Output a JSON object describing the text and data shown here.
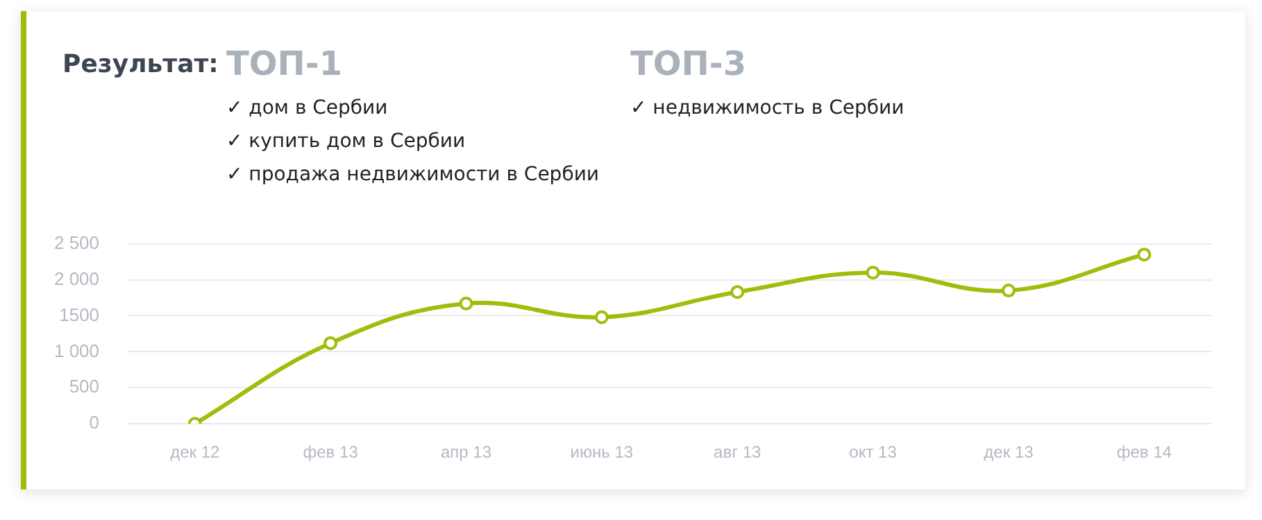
{
  "chart_data": {
    "type": "line",
    "title": "Результат:",
    "annotations": [
      "ТОП-1",
      "✓ дом в Сербии",
      "✓ купить дом в Сербии",
      "✓ продажа недвижимости в Сербии",
      "ТОП-3",
      "✓ недвижимость в Сербии"
    ],
    "categories": [
      "дек 12",
      "фев 13",
      "апр 13",
      "июнь 13",
      "авг 13",
      "окт 13",
      "дек 13",
      "фев 14"
    ],
    "series": [
      {
        "color": "#9dbf0c",
        "values": [
          0,
          1120,
          1670,
          1480,
          1830,
          2100,
          1850,
          2350
        ]
      }
    ],
    "ylim": [
      0,
      2500
    ],
    "yticks": [
      0,
      500,
      {
        "value": 1000,
        "label": "1 000"
      },
      1500,
      {
        "value": 2000,
        "label": "2 000"
      },
      {
        "value": 2500,
        "label": "2 500"
      }
    ],
    "grid": "y",
    "legend": false,
    "marker": "circle",
    "line_style": "solid"
  }
}
